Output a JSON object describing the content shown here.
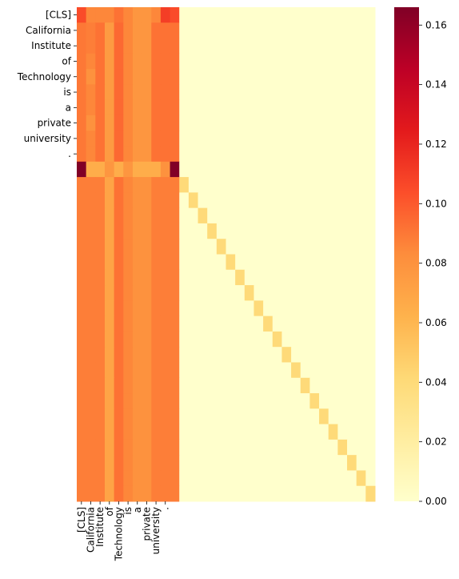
{
  "chart_data": {
    "type": "heatmap",
    "title": "",
    "xlabel": "",
    "ylabel": "",
    "size": 32,
    "x_tick_labels": [
      "[CLS]",
      "California",
      "Institute",
      "of",
      "Technology",
      "is",
      "a",
      "private",
      "university",
      "."
    ],
    "y_tick_labels": [
      "[CLS]",
      "California",
      "Institute",
      "of",
      "Technology",
      "is",
      "a",
      "private",
      "university",
      "."
    ],
    "colormap": "YlOrRd",
    "colorbar": {
      "range": [
        0.0,
        0.166
      ],
      "ticks": [
        0.0,
        0.02,
        0.04,
        0.06,
        0.08,
        0.1,
        0.12,
        0.14,
        0.16
      ],
      "tick_labels": [
        "0.00",
        "0.02",
        "0.04",
        "0.06",
        "0.08",
        "0.10",
        "0.12",
        "0.14",
        "0.16"
      ]
    },
    "default_value": 0.0,
    "token_rows": {
      "rows": [
        0,
        1,
        2,
        3,
        4,
        5,
        6,
        7,
        8,
        9
      ],
      "values": [
        [
          0.105,
          0.085,
          0.085,
          0.085,
          0.092,
          0.085,
          0.078,
          0.078,
          0.085,
          0.11,
          0.105
        ],
        [
          0.09,
          0.088,
          0.092,
          0.075,
          0.095,
          0.085,
          0.078,
          0.078,
          0.092,
          0.092,
          0.092
        ],
        [
          0.09,
          0.088,
          0.092,
          0.075,
          0.095,
          0.085,
          0.078,
          0.078,
          0.092,
          0.092,
          0.092
        ],
        [
          0.09,
          0.085,
          0.092,
          0.075,
          0.095,
          0.085,
          0.078,
          0.078,
          0.092,
          0.092,
          0.092
        ],
        [
          0.09,
          0.08,
          0.092,
          0.075,
          0.095,
          0.085,
          0.078,
          0.078,
          0.092,
          0.092,
          0.092
        ],
        [
          0.09,
          0.085,
          0.092,
          0.075,
          0.095,
          0.085,
          0.078,
          0.078,
          0.092,
          0.092,
          0.092
        ],
        [
          0.09,
          0.085,
          0.092,
          0.075,
          0.095,
          0.085,
          0.078,
          0.078,
          0.092,
          0.092,
          0.092
        ],
        [
          0.09,
          0.08,
          0.092,
          0.075,
          0.095,
          0.085,
          0.078,
          0.078,
          0.092,
          0.092,
          0.092
        ],
        [
          0.09,
          0.085,
          0.092,
          0.075,
          0.095,
          0.085,
          0.078,
          0.078,
          0.092,
          0.092,
          0.092
        ],
        [
          0.09,
          0.085,
          0.092,
          0.075,
          0.095,
          0.085,
          0.078,
          0.078,
          0.092,
          0.092,
          0.092
        ]
      ]
    },
    "separator_row": {
      "row": 10,
      "values": [
        0.166,
        0.065,
        0.065,
        0.078,
        0.065,
        0.078,
        0.065,
        0.065,
        0.065,
        0.08,
        0.166
      ]
    },
    "padding_rows": {
      "rows_from": 11,
      "rows_to": 31,
      "prefix_values": [
        0.088,
        0.088,
        0.088,
        0.07,
        0.092,
        0.085,
        0.08,
        0.08,
        0.088,
        0.088,
        0.088
      ],
      "diagonal_value": 0.04
    }
  }
}
